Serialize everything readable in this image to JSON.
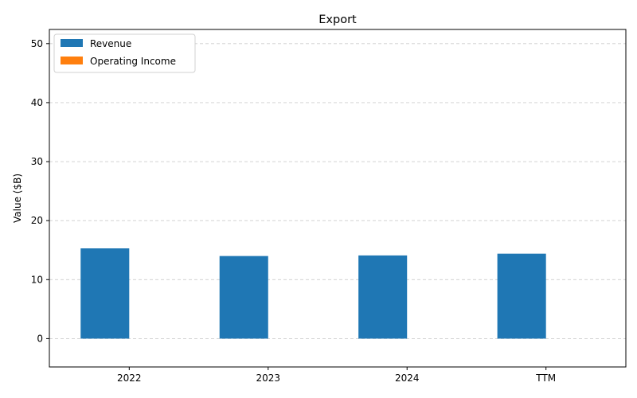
{
  "chart_data": {
    "type": "bar",
    "title": "Export",
    "xlabel": "",
    "ylabel": "Value ($B)",
    "categories": [
      "2022",
      "2023",
      "2024",
      "TTM"
    ],
    "series": [
      {
        "name": "Revenue",
        "values": [
          15.3,
          14.0,
          14.1,
          14.4
        ],
        "color": "#1f77b4"
      },
      {
        "name": "Operating Income",
        "values": [
          0,
          0,
          0,
          0
        ],
        "color": "#ff7f0e"
      }
    ],
    "ylim": [
      -4.8,
      52.4
    ],
    "yticks": [
      0,
      10,
      20,
      30,
      40,
      50
    ],
    "grid": "horizontal-dashed",
    "legend_position": "top-left"
  }
}
